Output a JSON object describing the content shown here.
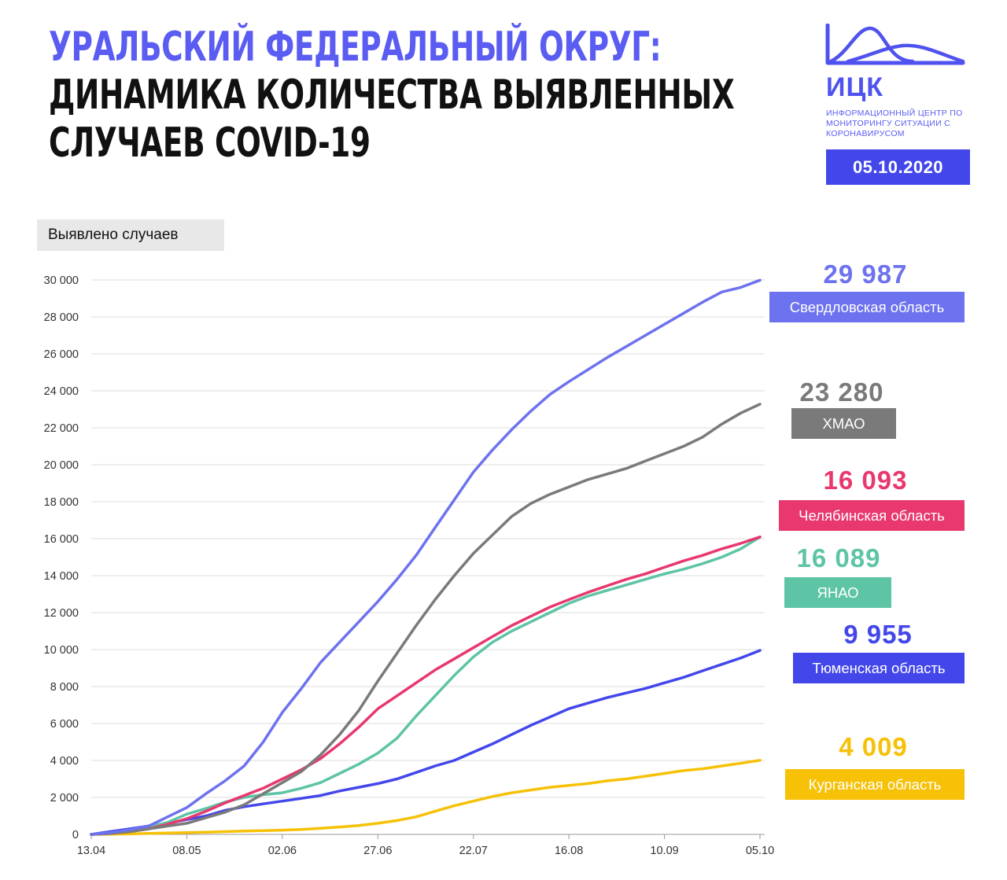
{
  "header": {
    "title_line1": "УРАЛЬСКИЙ ФЕДЕРАЛЬНЫЙ ОКРУГ:",
    "title_line2": "ДИНАМИКА КОЛИЧЕСТВА ВЫЯВЛЕННЫХ",
    "title_line3": "СЛУЧАЕВ COVID-19",
    "logo_name": "ИЦК",
    "logo_subtitle": "ИНФОРМАЦИОННЫЙ ЦЕНТР ПО МОНИТОРИНГУ СИТУАЦИИ С КОРОНАВИРУСОМ",
    "date": "05.10.2020",
    "brand_color": "#4f52ee"
  },
  "chart_data": {
    "type": "line",
    "ylabel": "Выявлено случаев",
    "ylim": [
      0,
      30000
    ],
    "yticks": [
      0,
      2000,
      4000,
      6000,
      8000,
      10000,
      12000,
      14000,
      16000,
      18000,
      20000,
      22000,
      24000,
      26000,
      28000,
      30000
    ],
    "ytick_labels": [
      "0",
      "2 000",
      "4 000",
      "6 000",
      "8 000",
      "10 000",
      "12 000",
      "14 000",
      "16 000",
      "18 000",
      "20 000",
      "22 000",
      "24 000",
      "26 000",
      "28 000",
      "30 000"
    ],
    "xlim": [
      0,
      175
    ],
    "xticks": [
      0,
      25,
      50,
      75,
      100,
      125,
      150,
      175
    ],
    "xtick_labels": [
      "13.04",
      "08.05",
      "02.06",
      "27.06",
      "22.07",
      "16.08",
      "10.09",
      "05.10"
    ],
    "grid": true,
    "series": [
      {
        "name": "Свердловская область",
        "final_label": "29 987",
        "color": "#6d72ee",
        "x": [
          0,
          5,
          10,
          15,
          20,
          25,
          30,
          35,
          40,
          45,
          50,
          55,
          60,
          65,
          70,
          75,
          80,
          85,
          90,
          95,
          100,
          105,
          110,
          115,
          120,
          125,
          130,
          135,
          140,
          145,
          150,
          155,
          160,
          165,
          170,
          175
        ],
        "values": [
          0,
          100,
          250,
          450,
          950,
          1450,
          2200,
          2900,
          3700,
          5000,
          6600,
          7900,
          9300,
          10400,
          11500,
          12600,
          13800,
          15100,
          16600,
          18100,
          19600,
          20800,
          21900,
          22900,
          23800,
          24500,
          25150,
          25800,
          26400,
          27000,
          27600,
          28200,
          28800,
          29350,
          29600,
          29987
        ]
      },
      {
        "name": "ХМАО",
        "final_label": "23 280",
        "color": "#7a7a7a",
        "x": [
          0,
          5,
          10,
          15,
          20,
          25,
          30,
          35,
          40,
          45,
          50,
          55,
          60,
          65,
          70,
          75,
          80,
          85,
          90,
          95,
          100,
          105,
          110,
          115,
          120,
          125,
          130,
          135,
          140,
          145,
          150,
          155,
          160,
          165,
          170,
          175
        ],
        "values": [
          0,
          50,
          150,
          300,
          450,
          600,
          900,
          1200,
          1600,
          2200,
          2800,
          3400,
          4300,
          5400,
          6700,
          8300,
          9800,
          11300,
          12700,
          14000,
          15200,
          16200,
          17200,
          17900,
          18400,
          18800,
          19200,
          19500,
          19800,
          20200,
          20600,
          21000,
          21500,
          22200,
          22800,
          23280
        ]
      },
      {
        "name": "Челябинская область",
        "final_label": "16 093",
        "color": "#e8386e",
        "x": [
          0,
          5,
          10,
          15,
          20,
          25,
          30,
          35,
          40,
          45,
          50,
          55,
          60,
          65,
          70,
          75,
          80,
          85,
          90,
          95,
          100,
          105,
          110,
          115,
          120,
          125,
          130,
          135,
          140,
          145,
          150,
          155,
          160,
          165,
          170,
          175
        ],
        "values": [
          0,
          50,
          150,
          300,
          550,
          850,
          1250,
          1700,
          2100,
          2500,
          3000,
          3500,
          4100,
          4900,
          5800,
          6800,
          7500,
          8200,
          8900,
          9500,
          10100,
          10700,
          11300,
          11800,
          12300,
          12700,
          13100,
          13450,
          13800,
          14100,
          14450,
          14800,
          15100,
          15450,
          15750,
          16093
        ]
      },
      {
        "name": "ЯНАО",
        "final_label": "16 089",
        "color": "#5ec4a6",
        "x": [
          0,
          5,
          10,
          15,
          20,
          25,
          30,
          35,
          40,
          45,
          50,
          55,
          60,
          65,
          70,
          75,
          80,
          85,
          90,
          95,
          100,
          105,
          110,
          115,
          120,
          125,
          130,
          135,
          140,
          145,
          150,
          155,
          160,
          165,
          170,
          175
        ],
        "values": [
          0,
          50,
          200,
          400,
          650,
          1100,
          1400,
          1750,
          2000,
          2150,
          2250,
          2500,
          2800,
          3300,
          3800,
          4400,
          5200,
          6400,
          7500,
          8600,
          9600,
          10400,
          11000,
          11500,
          12000,
          12500,
          12900,
          13200,
          13500,
          13800,
          14100,
          14350,
          14650,
          15000,
          15450,
          16089
        ]
      },
      {
        "name": "Тюменская область",
        "final_label": "9 955",
        "color": "#4347ea",
        "x": [
          0,
          5,
          10,
          15,
          20,
          25,
          30,
          35,
          40,
          45,
          50,
          55,
          60,
          65,
          70,
          75,
          80,
          85,
          90,
          95,
          100,
          105,
          110,
          115,
          120,
          125,
          130,
          135,
          140,
          145,
          150,
          155,
          160,
          165,
          170,
          175
        ],
        "values": [
          0,
          150,
          300,
          450,
          600,
          800,
          1000,
          1300,
          1500,
          1650,
          1800,
          1950,
          2100,
          2350,
          2550,
          2750,
          3000,
          3350,
          3700,
          4000,
          4450,
          4900,
          5400,
          5900,
          6350,
          6800,
          7100,
          7400,
          7650,
          7900,
          8200,
          8500,
          8850,
          9200,
          9550,
          9955
        ]
      },
      {
        "name": "Курганская область",
        "final_label": "4 009",
        "color": "#f6c107",
        "x": [
          0,
          5,
          10,
          15,
          20,
          25,
          30,
          35,
          40,
          45,
          50,
          55,
          60,
          65,
          70,
          75,
          80,
          85,
          90,
          95,
          100,
          105,
          110,
          115,
          120,
          125,
          130,
          135,
          140,
          145,
          150,
          155,
          160,
          165,
          170,
          175
        ],
        "values": [
          0,
          10,
          25,
          50,
          75,
          100,
          120,
          150,
          180,
          200,
          230,
          270,
          330,
          400,
          480,
          600,
          750,
          950,
          1250,
          1550,
          1800,
          2050,
          2250,
          2400,
          2550,
          2650,
          2750,
          2900,
          3000,
          3150,
          3300,
          3450,
          3550,
          3700,
          3850,
          4009
        ]
      }
    ]
  }
}
